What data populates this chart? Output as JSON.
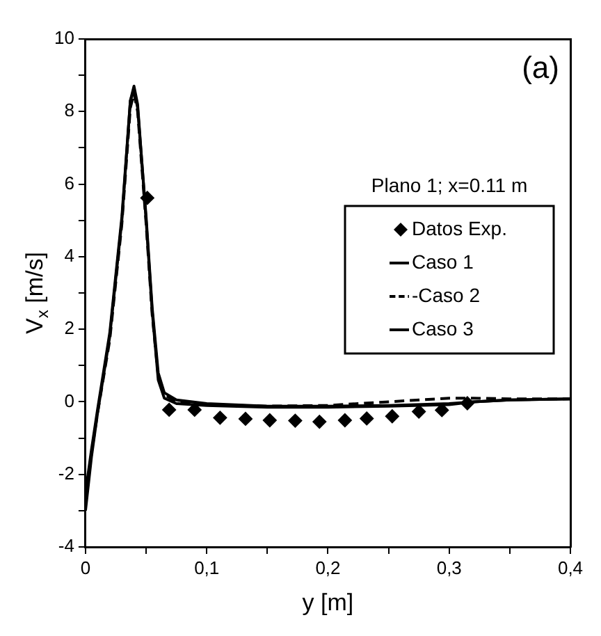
{
  "chart_data": {
    "type": "line",
    "xlabel": "y [m]",
    "ylabel": "V$_{x}$ [m/s]",
    "legend_title": "Plano 1; x=0.11 m",
    "legend": "right",
    "grid": false,
    "annotations": [
      "(a)"
    ],
    "xlim": [
      0,
      0.4
    ],
    "xticks": [
      0,
      {
        "value": 0.05,
        "label": null
      },
      {
        "value": 0.1,
        "label": "0,1"
      },
      {
        "value": 0.15,
        "label": null
      },
      {
        "value": 0.2,
        "label": "0,2"
      },
      {
        "value": 0.25,
        "label": null
      },
      {
        "value": 0.3,
        "label": "0,3"
      },
      {
        "value": 0.35,
        "label": null
      },
      {
        "value": 0.4,
        "label": "0,4"
      }
    ],
    "ylim": [
      -4,
      10
    ],
    "yticks": [
      -4,
      {
        "value": -3,
        "label": null
      },
      -2,
      {
        "value": -1,
        "label": null
      },
      0,
      {
        "value": 1,
        "label": null
      },
      2,
      {
        "value": 3,
        "label": null
      },
      4,
      {
        "value": 5,
        "label": null
      },
      6,
      {
        "value": 7,
        "label": null
      },
      8,
      {
        "value": 9,
        "label": null
      },
      10
    ],
    "series": [
      {
        "name": "Datos Exp.",
        "type": "scatter",
        "marker": "diamond",
        "color": "#000000",
        "x": [
          0.051,
          0.069,
          0.09,
          0.111,
          0.132,
          0.152,
          0.173,
          0.193,
          0.214,
          0.232,
          0.253,
          0.275,
          0.294,
          0.315
        ],
        "values": [
          5.62,
          -0.22,
          -0.22,
          -0.44,
          -0.47,
          -0.51,
          -0.52,
          -0.55,
          -0.51,
          -0.46,
          -0.4,
          -0.27,
          -0.23,
          -0.04
        ]
      },
      {
        "name": "Caso 1",
        "type": "line",
        "marker": "none",
        "line_style": "solid",
        "color": "#000000",
        "x": [
          0,
          0.005,
          0.01,
          0.02,
          0.03,
          0.037,
          0.04,
          0.043,
          0.05,
          0.055,
          0.06,
          0.065,
          0.075,
          0.1,
          0.15,
          0.2,
          0.25,
          0.3,
          0.32,
          0.35,
          0.4
        ],
        "values": [
          -3,
          -1.5,
          -0.3,
          1.8,
          5,
          8.3,
          8.7,
          8.2,
          5,
          2.5,
          0.6,
          0.1,
          -0.05,
          -0.1,
          -0.15,
          -0.15,
          -0.12,
          -0.08,
          0,
          0.05,
          0.08
        ]
      },
      {
        "name": "-Caso 2",
        "type": "line",
        "marker": "none",
        "line_style": "dashed",
        "color": "#000000",
        "x": [
          0,
          0.005,
          0.01,
          0.02,
          0.03,
          0.037,
          0.04,
          0.043,
          0.05,
          0.055,
          0.06,
          0.065,
          0.075,
          0.1,
          0.15,
          0.2,
          0.25,
          0.3,
          0.32,
          0.35,
          0.4
        ],
        "values": [
          -2.8,
          -1.4,
          -0.3,
          1.7,
          4.9,
          8.1,
          8.5,
          8.0,
          4.9,
          2.4,
          0.7,
          0.2,
          0.0,
          -0.08,
          -0.12,
          -0.1,
          0.0,
          0.1,
          0.1,
          0.08,
          0.08
        ]
      },
      {
        "name": "Caso 3",
        "type": "line",
        "marker": "none",
        "line_style": "solid",
        "color": "#000000",
        "x": [
          0,
          0.005,
          0.01,
          0.02,
          0.03,
          0.037,
          0.04,
          0.043,
          0.05,
          0.055,
          0.06,
          0.065,
          0.075,
          0.1,
          0.15,
          0.2,
          0.25,
          0.3,
          0.32,
          0.35,
          0.4
        ],
        "values": [
          -2.5,
          -1.3,
          -0.2,
          1.9,
          5.1,
          8.3,
          8.6,
          8.1,
          5.1,
          2.6,
          0.8,
          0.25,
          0.05,
          -0.05,
          -0.12,
          -0.12,
          -0.1,
          -0.05,
          0,
          0.05,
          0.08
        ]
      }
    ]
  }
}
